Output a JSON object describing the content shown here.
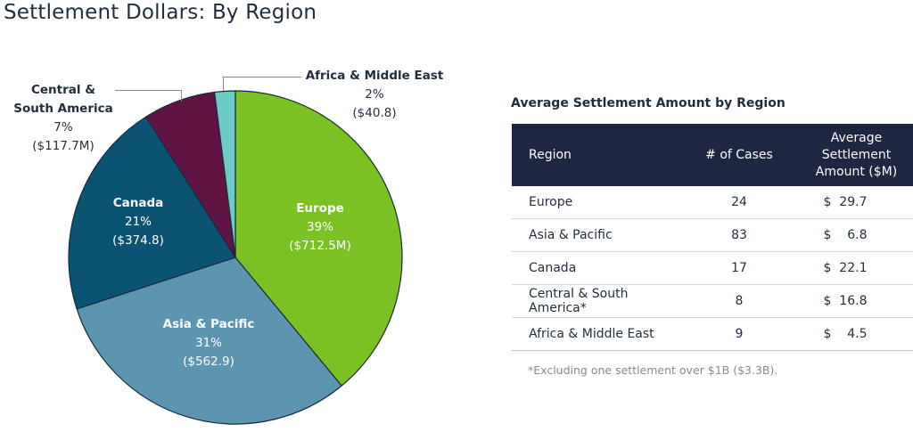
{
  "title": "Settlement Dollars: By Region",
  "chart_data": {
    "type": "pie",
    "title": "Settlement Dollars: By Region",
    "slices": [
      {
        "name": "Europe",
        "percent": 39,
        "value_label": "($712.5M)",
        "color": "#7cc124"
      },
      {
        "name": "Asia & Pacific",
        "percent": 31,
        "value_label": "($562.9)",
        "color": "#5b95b0"
      },
      {
        "name": "Canada",
        "percent": 21,
        "value_label": "($374.8)",
        "color": "#0b5373"
      },
      {
        "name": "Central & South America",
        "name_lines": [
          "Central &",
          "South America"
        ],
        "percent": 7,
        "value_label": "($117.7M)",
        "color": "#601444"
      },
      {
        "name": "Africa & Middle East",
        "percent": 2,
        "value_label": "($40.8)",
        "color": "#6ccbc5"
      }
    ]
  },
  "table": {
    "title": "Average Settlement Amount by Region",
    "headers": {
      "region": "Region",
      "cases": "# of Cases",
      "amount_lines": [
        "Average",
        "Settlement",
        "Amount ($M)"
      ]
    },
    "rows": [
      {
        "region": "Europe",
        "cases": "24",
        "amount": "$  29.7"
      },
      {
        "region": "Asia & Pacific",
        "cases": "83",
        "amount": "$    6.8"
      },
      {
        "region": "Canada",
        "cases": "17",
        "amount": "$  22.1"
      },
      {
        "region": "Central & South America*",
        "cases": "8",
        "amount": "$  16.8"
      },
      {
        "region": "Africa & Middle East",
        "cases": "9",
        "amount": "$    4.5"
      }
    ],
    "footnote": "*Excluding one settlement over $1B ($3.3B)."
  }
}
